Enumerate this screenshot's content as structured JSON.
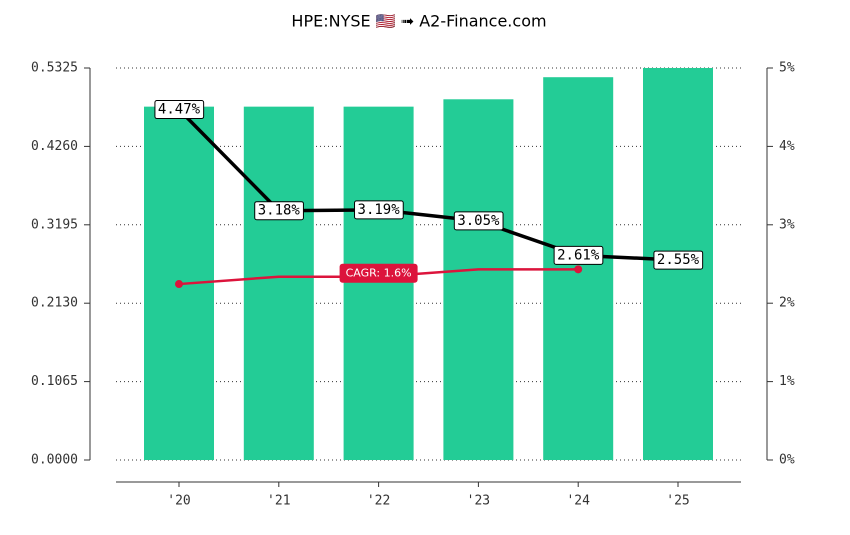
{
  "chart_data": {
    "type": "bar",
    "title": "HPE:NYSE 🇺🇸 ➟ A2-Finance.com",
    "categories": [
      "'20",
      "'21",
      "'22",
      "'23",
      "'24",
      "'25"
    ],
    "series": [
      {
        "type": "bar",
        "color": "#23cc96",
        "values": [
          0.48,
          0.48,
          0.48,
          0.49,
          0.52,
          0.5325
        ]
      },
      {
        "type": "line",
        "axis": "y2",
        "color": "#000000",
        "values": [
          4.47,
          3.18,
          3.19,
          3.05,
          2.61,
          2.55
        ],
        "value_labels": [
          "4.47%",
          "3.18%",
          "3.19%",
          "3.05%",
          "2.61%",
          "2.55%"
        ]
      },
      {
        "type": "line",
        "color": "#dc143c",
        "values": [
          0.239,
          0.249,
          0.249,
          0.259,
          0.259,
          null
        ]
      }
    ],
    "annotations": [
      {
        "text": "CAGR: 1.6%",
        "category": 2,
        "color": "#dc143c"
      }
    ],
    "ylim": [
      0,
      0.5325
    ],
    "yticks": [
      {
        "value": 0,
        "label": "0.0000"
      },
      {
        "value": 0.1065,
        "label": "0.1065"
      },
      {
        "value": 0.213,
        "label": "0.2130"
      },
      {
        "value": 0.3195,
        "label": "0.3195"
      },
      {
        "value": 0.426,
        "label": "0.4260"
      },
      0.5325
    ],
    "y2lim": [
      0,
      5
    ],
    "y2ticks": [
      {
        "value": 0,
        "label": "0%"
      },
      {
        "value": 1,
        "label": "1%"
      },
      {
        "value": 2,
        "label": "2%"
      },
      {
        "value": 3,
        "label": "3%"
      },
      {
        "value": 4,
        "label": "4%"
      },
      {
        "value": 5,
        "label": "5%"
      }
    ],
    "grid": true
  }
}
